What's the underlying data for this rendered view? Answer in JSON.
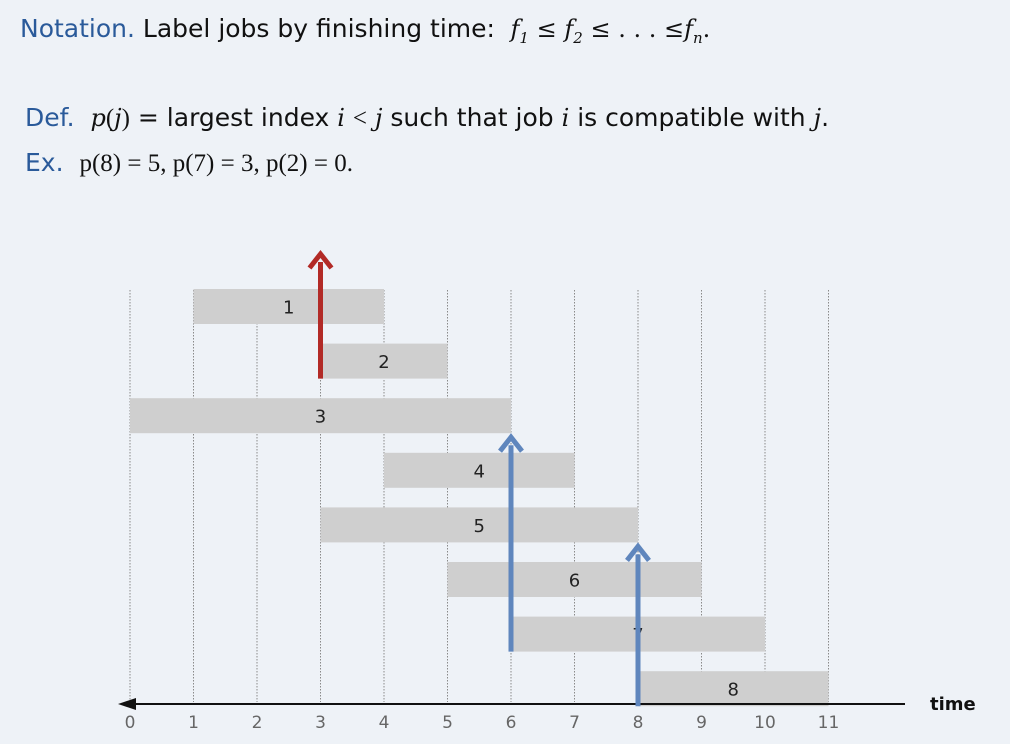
{
  "notation": {
    "label": "Notation.",
    "text": "Label jobs by finishing time:",
    "f1": "f",
    "f1_sub": "1",
    "le": "≤",
    "f2": "f",
    "f2_sub": "2",
    "dots": ". . .",
    "fn": "f",
    "fn_sub": "n",
    "end": "."
  },
  "definition": {
    "label": "Def.",
    "p_of_j": "p",
    "paren_open": "(",
    "j": "j",
    "paren_close": ")",
    "eq_text": "= largest index",
    "i": "i",
    "lt": "<",
    "j2": "j",
    "such_that": "such that job",
    "i2": "i",
    "compatible": "is compatible with",
    "j3": "j",
    "end": "."
  },
  "example": {
    "label": "Ex.",
    "text": "p(8) = 5, p(7) = 3, p(2) = 0."
  },
  "diagram": {
    "axis_label": "time",
    "ticks": [
      "0",
      "1",
      "2",
      "3",
      "4",
      "5",
      "6",
      "7",
      "8",
      "9",
      "10",
      "11"
    ],
    "jobs": [
      {
        "label": "1",
        "start": 1,
        "finish": 4
      },
      {
        "label": "2",
        "start": 3,
        "finish": 5
      },
      {
        "label": "3",
        "start": 0,
        "finish": 6
      },
      {
        "label": "4",
        "start": 4,
        "finish": 7
      },
      {
        "label": "5",
        "start": 3,
        "finish": 8
      },
      {
        "label": "6",
        "start": 5,
        "finish": 9
      },
      {
        "label": "7",
        "start": 6,
        "finish": 10
      },
      {
        "label": "8",
        "start": 8,
        "finish": 11
      }
    ],
    "arrows": [
      {
        "job": "2",
        "at": 3,
        "color": "#b22a26"
      },
      {
        "job": "7",
        "at": 6,
        "color": "#5f86bd"
      },
      {
        "job": "8",
        "at": 8,
        "color": "#5f86bd"
      }
    ],
    "colors": {
      "bar": "#cfcfcf",
      "grid": "#8a8a8a",
      "axis": "#111111"
    }
  }
}
